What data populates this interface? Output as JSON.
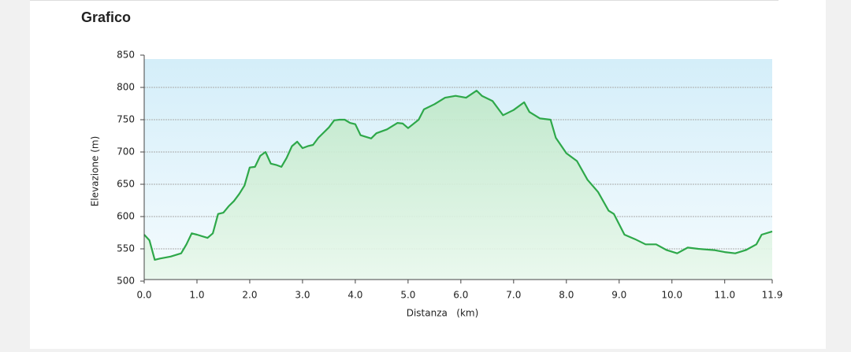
{
  "chart_data": {
    "type": "area",
    "title": "Grafico",
    "xlabel": "Distanza   (km)",
    "ylabel": "Elevazione (m)",
    "x": [
      0.0,
      0.1,
      0.2,
      0.3,
      0.5,
      0.7,
      0.8,
      0.9,
      1.0,
      1.2,
      1.3,
      1.4,
      1.5,
      1.6,
      1.7,
      1.8,
      1.9,
      2.0,
      2.1,
      2.2,
      2.3,
      2.4,
      2.5,
      2.6,
      2.7,
      2.8,
      2.9,
      3.0,
      3.1,
      3.2,
      3.3,
      3.5,
      3.6,
      3.7,
      3.8,
      3.9,
      4.0,
      4.1,
      4.3,
      4.4,
      4.6,
      4.8,
      4.9,
      5.0,
      5.2,
      5.3,
      5.5,
      5.7,
      5.9,
      6.1,
      6.3,
      6.4,
      6.6,
      6.8,
      7.0,
      7.2,
      7.3,
      7.5,
      7.7,
      7.8,
      8.0,
      8.2,
      8.4,
      8.6,
      8.8,
      8.9,
      9.1,
      9.3,
      9.5,
      9.7,
      9.9,
      10.1,
      10.3,
      10.5,
      10.8,
      11.0,
      11.2,
      11.4,
      11.6,
      11.7,
      11.9
    ],
    "values": [
      572,
      563,
      533,
      535,
      538,
      543,
      557,
      574,
      572,
      567,
      574,
      604,
      606,
      616,
      624,
      635,
      648,
      676,
      677,
      694,
      700,
      682,
      680,
      677,
      691,
      709,
      716,
      706,
      709,
      711,
      722,
      738,
      749,
      750,
      750,
      745,
      743,
      726,
      721,
      729,
      735,
      745,
      744,
      737,
      750,
      766,
      774,
      784,
      787,
      784,
      795,
      787,
      779,
      757,
      765,
      777,
      762,
      752,
      750,
      722,
      698,
      686,
      657,
      638,
      609,
      604,
      572,
      565,
      557,
      557,
      548,
      543,
      552,
      550,
      548,
      545,
      543,
      548,
      557,
      572,
      577
    ],
    "color": "#2ea84a",
    "xlim": [
      0,
      11.9
    ],
    "ylim": [
      500,
      850
    ],
    "xticks": [
      {
        "value": 0,
        "label": "0.0"
      },
      {
        "value": 1,
        "label": "1.0"
      },
      {
        "value": 2,
        "label": "2.0"
      },
      {
        "value": 3,
        "label": "3.0"
      },
      {
        "value": 4,
        "label": "4.0"
      },
      {
        "value": 5,
        "label": "5.0"
      },
      {
        "value": 6,
        "label": "6.0"
      },
      {
        "value": 7,
        "label": "7.0"
      },
      {
        "value": 8,
        "label": "8.0"
      },
      {
        "value": 9,
        "label": "9.0"
      },
      {
        "value": 10,
        "label": "10.0"
      },
      {
        "value": 11,
        "label": "11.0"
      },
      11.9
    ],
    "yticks": [
      500,
      550,
      600,
      650,
      700,
      750,
      800,
      850
    ],
    "grid": true
  }
}
